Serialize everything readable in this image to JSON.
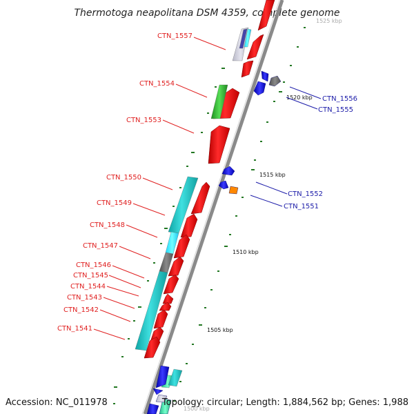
{
  "title": "Thermotoga neapolitana DSM 4359, complete genome",
  "footer": {
    "accession": "Accession: NC_011978",
    "summary": "Topology: circular; Length: 1,884,562 bp; Genes: 1,988"
  },
  "ticks": {
    "t1500": "1500 kbp",
    "t1505": "1505 kbp",
    "t1510": "1510 kbp",
    "t1515": "1515 kbp",
    "t1520": "1520 kbp",
    "t1525": "1525 kbp"
  },
  "labels": {
    "ctn1557": "CTN_1557",
    "ctn1554": "CTN_1554",
    "ctn1553": "CTN_1553",
    "ctn1550": "CTN_1550",
    "ctn1549": "CTN_1549",
    "ctn1548": "CTN_1548",
    "ctn1547": "CTN_1547",
    "ctn1546": "CTN_1546",
    "ctn1545": "CTN_1545",
    "ctn1544": "CTN_1544",
    "ctn1543": "CTN_1543",
    "ctn1542": "CTN_1542",
    "ctn1541": "CTN_1541",
    "ctn1556": "CTN_1556",
    "ctn1555": "CTN_1555",
    "ctn1552": "CTN_1552",
    "ctn1551": "CTN_1551"
  },
  "colors": {
    "backbone": "#8a8a8a",
    "cds_forward": "#ff1a1a",
    "cds_reverse": "#1010dd",
    "cog_cyan": "#22cccc",
    "cog_green": "#33bb33",
    "cog_gray": "#777777",
    "cog_orange": "#ff8800",
    "cog_purple": "#4444aa",
    "tick_mark": "#227722",
    "label_red": "#e02020",
    "label_blue": "#1a1aa8"
  }
}
